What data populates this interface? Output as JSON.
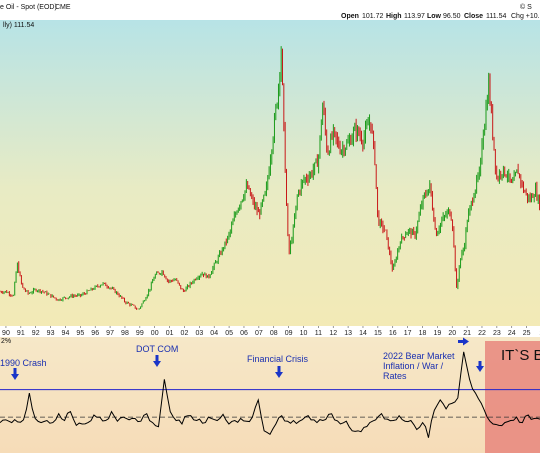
{
  "header": {
    "title": "e Oil - Spot (EOD)",
    "exchange": "CME",
    "open_label": "Open",
    "open_value": "101.72",
    "high_label": "High",
    "high_value": "113.97",
    "low_label": "Low",
    "low_value": "96.50",
    "close_label": "Close",
    "close_value": "111.54",
    "corner_top": "© S",
    "corner_change": "Chg +10."
  },
  "price_legend": "lly) 111.54",
  "indicator_label": "2%",
  "annotations": {
    "crash_1990": "1990 Crash",
    "dot_com": "DOT COM",
    "financial_crisis": "Financial Crisis",
    "bear_2022_line1": "2022 Bear Market",
    "bear_2022_line2": "Inflation / War /",
    "bear_2022_line3": "Rates",
    "its_box": "IT`S B"
  },
  "colors": {
    "up": "#1a9a1a",
    "down": "#c81818",
    "indicator_line": "#000000",
    "threshold_line": "#2222cc",
    "arrow": "#1a35c8",
    "annotation_text": "#1a2fb0",
    "highlight_box": "#e8867d"
  },
  "chart_data": [
    {
      "type": "line",
      "subtitle": "e Oil - Spot (EOD)",
      "ohlc": {
        "open": 101.72,
        "high": 113.97,
        "low": 96.5,
        "close": 111.54
      },
      "x": [
        1989.6,
        1990.0,
        1990.5,
        1990.75,
        1991.1,
        1991.5,
        1992.0,
        1992.5,
        1993.0,
        1993.5,
        1994.0,
        1994.5,
        1995.0,
        1995.5,
        1996.0,
        1996.5,
        1997.0,
        1997.5,
        1998.0,
        1998.5,
        1998.9,
        1999.3,
        1999.7,
        2000.0,
        2000.5,
        2000.9,
        2001.4,
        2001.9,
        2002.3,
        2002.8,
        2003.2,
        2003.6,
        2004.0,
        2004.5,
        2005.0,
        2005.5,
        2005.8,
        2006.2,
        2006.6,
        2007.0,
        2007.5,
        2008.0,
        2008.3,
        2008.5,
        2008.7,
        2008.9,
        2009.0,
        2009.3,
        2009.6,
        2010.0,
        2010.5,
        2011.0,
        2011.3,
        2011.6,
        2012.0,
        2012.5,
        2013.0,
        2013.5,
        2014.0,
        2014.5,
        2014.8,
        2015.0,
        2015.5,
        2016.0,
        2016.5,
        2017.0,
        2017.5,
        2018.0,
        2018.5,
        2018.9,
        2019.3,
        2019.8,
        2020.0,
        2020.3,
        2020.5,
        2020.8,
        2021.0,
        2021.5,
        2021.9,
        2022.0,
        2022.2,
        2022.45,
        2022.7,
        2023.0,
        2023.3,
        2023.7,
        2024.0,
        2024.4,
        2024.8,
        2025.2,
        2025.6,
        2025.9
      ],
      "values": [
        20,
        20,
        18,
        34,
        22,
        19,
        21,
        20,
        18,
        16,
        17,
        18,
        18,
        20,
        22,
        24,
        22,
        19,
        15,
        13,
        11,
        16,
        22,
        28,
        30,
        25,
        26,
        20,
        23,
        27,
        29,
        27,
        33,
        40,
        48,
        60,
        65,
        72,
        64,
        58,
        70,
        100,
        120,
        140,
        95,
        55,
        38,
        50,
        68,
        75,
        78,
        85,
        113,
        88,
        98,
        90,
        93,
        100,
        95,
        105,
        85,
        55,
        50,
        30,
        45,
        50,
        48,
        65,
        72,
        48,
        55,
        60,
        55,
        20,
        35,
        42,
        55,
        70,
        80,
        95,
        105,
        123,
        100,
        75,
        80,
        78,
        72,
        80,
        70,
        65,
        70,
        62
      ],
      "xlim": [
        1989.6,
        2025.9
      ],
      "ylim": [
        5,
        150
      ],
      "ylabel": "",
      "xlabel": "",
      "tick_labels": [
        "90",
        "91",
        "92",
        "93",
        "94",
        "95",
        "96",
        "97",
        "98",
        "99",
        "00",
        "01",
        "02",
        "03",
        "04",
        "05",
        "06",
        "07",
        "08",
        "09",
        "10",
        "11",
        "12",
        "13",
        "14",
        "15",
        "16",
        "17",
        "18",
        "19",
        "20",
        "21",
        "22",
        "23",
        "24",
        "25",
        "2"
      ],
      "legend": "lly) 111.54",
      "grid": false
    },
    {
      "type": "line",
      "series": [
        {
          "values": [
            -8,
            -4,
            -8,
            -7,
            -4,
            35,
            -2,
            -8,
            -5,
            -8,
            5,
            -5,
            8,
            -12,
            -10,
            -8,
            3,
            0,
            -5,
            8,
            -6,
            0,
            -4,
            -2,
            -6,
            5,
            -8,
            -14,
            55,
            8,
            -5,
            -10,
            2,
            -4,
            -3,
            -8,
            -2,
            -5,
            4,
            -10,
            -5,
            -2,
            -6,
            0,
            25,
            -20,
            -25,
            -10,
            2,
            -6,
            -5,
            -6,
            0,
            -4,
            -8,
            -5,
            4,
            -4,
            -10,
            -6,
            -20,
            -20,
            -15,
            -8,
            -4,
            5,
            -3,
            -5,
            2,
            -6,
            -5,
            -18,
            -8,
            -30,
            10,
            25,
            12,
            20,
            28,
            95,
            55,
            35,
            20,
            0,
            -10,
            -12,
            -8,
            -5,
            0,
            -8,
            3,
            -2,
            -3
          ]
        }
      ],
      "x_start": 1989.6,
      "x_end": 2025.9,
      "threshold": 40,
      "baseline": 0,
      "ylim": [
        -45,
        105
      ],
      "label": "2%"
    }
  ]
}
